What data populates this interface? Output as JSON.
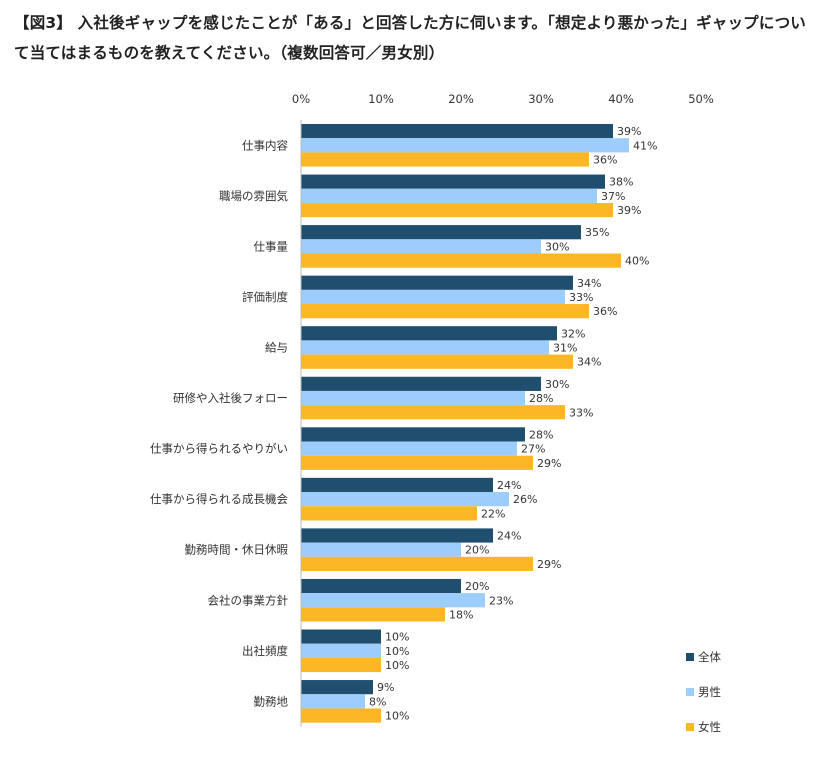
{
  "title": "【図3】 入社後ギャップを感じたことが「ある」と回答した方に伺います。「想定より悪かった」ギャップについて当てはまるものを教えてください。（複数回答可／男女別）",
  "chart_data": {
    "type": "bar",
    "orientation": "horizontal",
    "title": "【図3】 入社後ギャップを感じたことが「ある」と回答した方に伺います。「想定より悪かった」ギャップについて当てはまるものを教えてください。（複数回答可／男女別）",
    "xlim": [
      0,
      50
    ],
    "ticks": [
      "0%",
      "10%",
      "20%",
      "30%",
      "40%",
      "50%"
    ],
    "tick_values": [
      0,
      10,
      20,
      30,
      40,
      50
    ],
    "grid": false,
    "legend_position": "bottom-right",
    "categories": [
      "仕事内容",
      "職場の雰囲気",
      "仕事量",
      "評価制度",
      "給与",
      "研修や入社後フォロー",
      "仕事から得られるやりがい",
      "仕事から得られる成長機会",
      "勤務時間・休日休暇",
      "会社の事業方針",
      "出社頻度",
      "勤務地"
    ],
    "series": [
      {
        "name": "全体",
        "color": "#1f4e6e",
        "values": [
          39,
          38,
          35,
          34,
          32,
          30,
          28,
          24,
          24,
          20,
          10,
          9
        ]
      },
      {
        "name": "男性",
        "color": "#9dcdfa",
        "values": [
          41,
          37,
          30,
          33,
          31,
          28,
          27,
          26,
          20,
          23,
          10,
          8
        ]
      },
      {
        "name": "女性",
        "color": "#fbb726",
        "values": [
          36,
          39,
          40,
          36,
          34,
          33,
          29,
          22,
          29,
          18,
          10,
          10
        ]
      }
    ]
  }
}
